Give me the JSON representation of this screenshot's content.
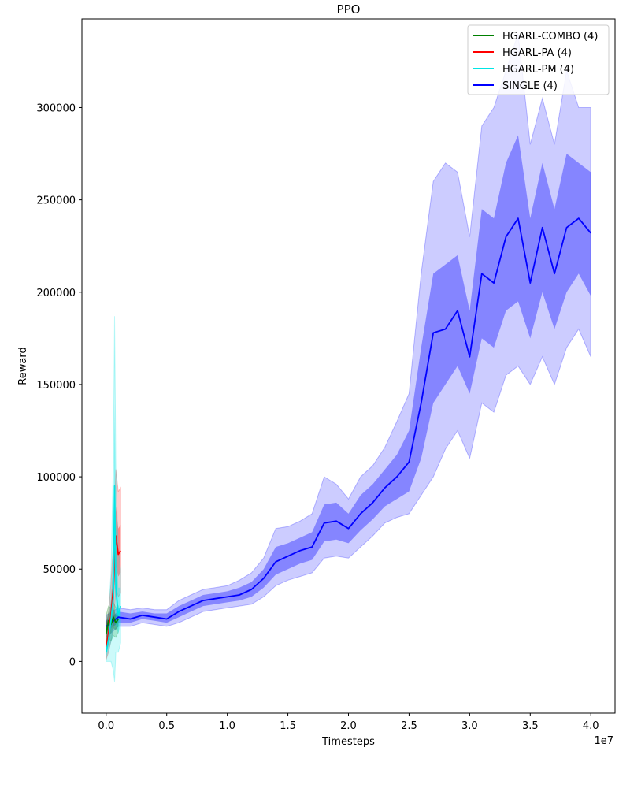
{
  "chart_data": {
    "type": "line",
    "title": "PPO",
    "xlabel": "Timesteps",
    "ylabel": "Reward",
    "x_offset_label": "1e7",
    "xlim": [
      -0.2,
      4.2
    ],
    "ylim": [
      -28000,
      348000
    ],
    "x_ticks": [
      0.0,
      0.5,
      1.0,
      1.5,
      2.0,
      2.5,
      3.0,
      3.5,
      4.0
    ],
    "x_tick_labels": [
      "0.0",
      "0.5",
      "1.0",
      "1.5",
      "2.0",
      "2.5",
      "3.0",
      "3.5",
      "4.0"
    ],
    "y_ticks": [
      0,
      50000,
      100000,
      150000,
      200000,
      250000,
      300000
    ],
    "y_tick_labels": [
      "0",
      "50000",
      "100000",
      "150000",
      "200000",
      "250000",
      "300000"
    ],
    "grid": false,
    "legend_position": "top-right",
    "series": [
      {
        "name": "HGARL-COMBO (4)",
        "color": "#008000",
        "x": [
          0.0,
          0.02,
          0.04,
          0.06,
          0.08,
          0.1
        ],
        "y": [
          15000,
          22000,
          20000,
          24000,
          21000,
          23000
        ],
        "band1_low": [
          9000,
          17000,
          15000,
          18000,
          17000,
          19000
        ],
        "band1_high": [
          21000,
          27000,
          25000,
          29000,
          25000,
          27000
        ],
        "band2_low": [
          5000,
          13000,
          11000,
          14000,
          13000,
          16000
        ],
        "band2_high": [
          25000,
          30000,
          29000,
          32000,
          29000,
          30000
        ]
      },
      {
        "name": "HGARL-PA (4)",
        "color": "#ff0000",
        "x": [
          0.0,
          0.02,
          0.04,
          0.06,
          0.08,
          0.1,
          0.12
        ],
        "y": [
          8000,
          15000,
          25000,
          40000,
          68000,
          58000,
          60000
        ],
        "band1_low": [
          4000,
          9000,
          17000,
          28000,
          52000,
          46000,
          48000
        ],
        "band1_high": [
          13000,
          21000,
          33000,
          52000,
          84000,
          72000,
          74000
        ],
        "band2_low": [
          1000,
          5000,
          11000,
          18000,
          40000,
          35000,
          37000
        ],
        "band2_high": [
          17000,
          26000,
          42000,
          64000,
          104000,
          92000,
          94000
        ]
      },
      {
        "name": "HGARL-PM (4)",
        "color": "#00e5e5",
        "x": [
          0.0,
          0.02,
          0.04,
          0.06,
          0.07,
          0.08,
          0.1,
          0.12
        ],
        "y": [
          5000,
          12000,
          22000,
          35000,
          95000,
          40000,
          25000,
          30000
        ],
        "band1_low": [
          2000,
          6000,
          10000,
          15000,
          50000,
          20000,
          15000,
          20000
        ],
        "band1_high": [
          8000,
          18000,
          34000,
          60000,
          140000,
          75000,
          40000,
          40000
        ],
        "band2_low": [
          0,
          0,
          0,
          -5000,
          -11000,
          5000,
          5000,
          10000
        ],
        "band2_high": [
          12000,
          25000,
          48000,
          110000,
          187000,
          105000,
          60000,
          50000
        ]
      },
      {
        "name": "SINGLE (4)",
        "color": "#0000ff",
        "x": [
          0.0,
          0.1,
          0.2,
          0.3,
          0.4,
          0.5,
          0.6,
          0.7,
          0.8,
          0.9,
          1.0,
          1.1,
          1.2,
          1.3,
          1.4,
          1.5,
          1.6,
          1.7,
          1.8,
          1.9,
          2.0,
          2.1,
          2.2,
          2.3,
          2.4,
          2.5,
          2.6,
          2.7,
          2.8,
          2.9,
          3.0,
          3.1,
          3.2,
          3.3,
          3.4,
          3.5,
          3.6,
          3.7,
          3.8,
          3.9,
          4.0
        ],
        "y": [
          19000,
          24000,
          23000,
          25000,
          24000,
          23000,
          27000,
          30000,
          33000,
          34000,
          35000,
          36000,
          39000,
          45000,
          54000,
          57000,
          60000,
          62000,
          75000,
          76000,
          72000,
          80000,
          86000,
          94000,
          100000,
          108000,
          140000,
          178000,
          180000,
          190000,
          165000,
          210000,
          205000,
          230000,
          240000,
          205000,
          235000,
          210000,
          235000,
          240000,
          232000
        ],
        "band1_low": [
          16000,
          21000,
          21000,
          23000,
          22000,
          21000,
          24000,
          27000,
          30000,
          31000,
          32000,
          33000,
          35000,
          40000,
          47000,
          50000,
          53000,
          55000,
          65000,
          66000,
          64000,
          71000,
          77000,
          84000,
          88000,
          92000,
          110000,
          140000,
          150000,
          160000,
          145000,
          175000,
          170000,
          190000,
          195000,
          175000,
          200000,
          180000,
          200000,
          210000,
          198000
        ],
        "band1_high": [
          22000,
          27000,
          26000,
          27000,
          26000,
          26000,
          30000,
          33000,
          36000,
          37000,
          38000,
          40000,
          43000,
          50000,
          62000,
          64000,
          67000,
          70000,
          85000,
          86000,
          80000,
          90000,
          96000,
          104000,
          112000,
          125000,
          170000,
          210000,
          215000,
          220000,
          190000,
          245000,
          240000,
          270000,
          285000,
          240000,
          270000,
          245000,
          275000,
          270000,
          265000
        ],
        "band2_low": [
          13000,
          19000,
          19000,
          21000,
          20000,
          19000,
          21000,
          24000,
          27000,
          28000,
          29000,
          30000,
          31000,
          35000,
          41000,
          44000,
          46000,
          48000,
          56000,
          57000,
          56000,
          62000,
          68000,
          75000,
          78000,
          80000,
          90000,
          100000,
          115000,
          125000,
          110000,
          140000,
          135000,
          155000,
          160000,
          150000,
          165000,
          150000,
          170000,
          180000,
          165000
        ],
        "band2_high": [
          25000,
          29000,
          28000,
          29000,
          28000,
          28000,
          33000,
          36000,
          39000,
          40000,
          41000,
          44000,
          48000,
          56000,
          72000,
          73000,
          76000,
          80000,
          100000,
          96000,
          88000,
          100000,
          106000,
          116000,
          130000,
          145000,
          210000,
          260000,
          270000,
          265000,
          230000,
          290000,
          300000,
          320000,
          340000,
          280000,
          305000,
          280000,
          320000,
          300000,
          300000
        ]
      }
    ]
  }
}
